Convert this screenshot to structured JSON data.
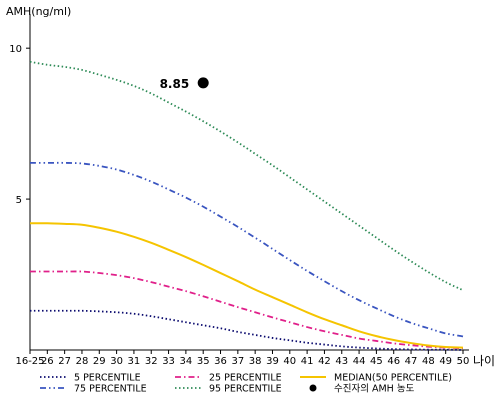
{
  "chart_data": {
    "type": "line",
    "ylabel": "AMH(ng/ml)",
    "xlabel": "나이",
    "xlim": [
      0,
      25
    ],
    "ylim": [
      0,
      11
    ],
    "y_ticks": [
      5,
      10
    ],
    "categories": [
      "16-25",
      "26",
      "27",
      "28",
      "29",
      "30",
      "31",
      "32",
      "33",
      "34",
      "35",
      "36",
      "37",
      "38",
      "39",
      "40",
      "41",
      "42",
      "43",
      "44",
      "45",
      "46",
      "47",
      "48",
      "49",
      "50"
    ],
    "series": [
      {
        "name": "5 PERCENTILE",
        "color": "#0a0a6e",
        "dash": "dot",
        "values": [
          1.3,
          1.3,
          1.3,
          1.3,
          1.28,
          1.25,
          1.2,
          1.12,
          1.02,
          0.92,
          0.82,
          0.72,
          0.6,
          0.5,
          0.4,
          0.32,
          0.24,
          0.18,
          0.12,
          0.08,
          0.05,
          0.03,
          0.02,
          0.01,
          0.01,
          0.0
        ]
      },
      {
        "name": "25 PERCENTILE",
        "color": "#e0208a",
        "dash": "dashdot",
        "values": [
          2.6,
          2.6,
          2.6,
          2.6,
          2.55,
          2.48,
          2.38,
          2.25,
          2.1,
          1.95,
          1.78,
          1.6,
          1.42,
          1.25,
          1.08,
          0.92,
          0.76,
          0.62,
          0.5,
          0.38,
          0.3,
          0.22,
          0.16,
          0.11,
          0.08,
          0.06
        ]
      },
      {
        "name": "MEDIAN(50 PERCENTILE)",
        "color": "#f5c400",
        "dash": "solid",
        "values": [
          4.2,
          4.2,
          4.18,
          4.15,
          4.05,
          3.92,
          3.75,
          3.55,
          3.32,
          3.08,
          2.82,
          2.55,
          2.28,
          2.0,
          1.75,
          1.5,
          1.25,
          1.02,
          0.82,
          0.62,
          0.46,
          0.33,
          0.23,
          0.15,
          0.1,
          0.08
        ]
      },
      {
        "name": "75 PERCENTILE",
        "color": "#3a55c0",
        "dash": "dashdotdot",
        "values": [
          6.2,
          6.2,
          6.2,
          6.18,
          6.1,
          5.98,
          5.8,
          5.58,
          5.32,
          5.05,
          4.75,
          4.42,
          4.08,
          3.72,
          3.35,
          2.98,
          2.62,
          2.28,
          1.95,
          1.65,
          1.38,
          1.12,
          0.9,
          0.72,
          0.55,
          0.45
        ]
      },
      {
        "name": "95 PERCENTILE",
        "color": "#2e8b57",
        "dash": "dot",
        "values": [
          9.55,
          9.45,
          9.38,
          9.28,
          9.12,
          8.95,
          8.75,
          8.5,
          8.2,
          7.9,
          7.58,
          7.24,
          6.88,
          6.5,
          6.12,
          5.72,
          5.32,
          4.92,
          4.52,
          4.12,
          3.72,
          3.32,
          2.94,
          2.58,
          2.25,
          1.98
        ]
      }
    ],
    "point": {
      "name": "수진자의 AMH 농도",
      "x_index": 10,
      "y": 8.85,
      "label": "8.85",
      "color": "#000000"
    },
    "legend_placement": "bottom",
    "grid": false
  }
}
